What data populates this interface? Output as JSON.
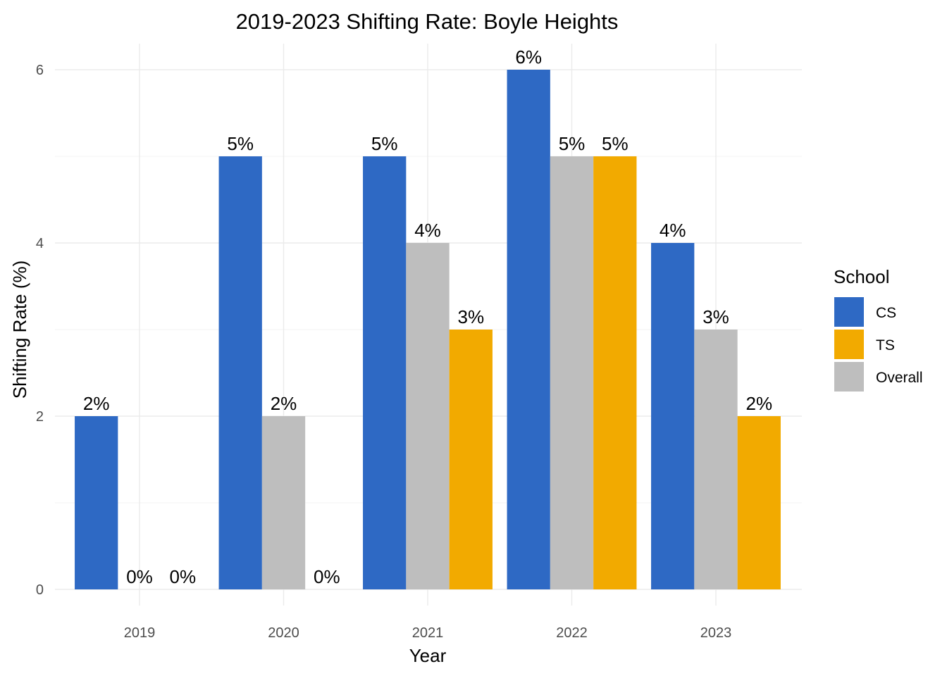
{
  "chart_data": {
    "type": "bar",
    "title": "2019-2023 Shifting Rate: Boyle Heights",
    "xlabel": "Year",
    "ylabel": "Shifting Rate (%)",
    "categories": [
      "2019",
      "2020",
      "2021",
      "2022",
      "2023"
    ],
    "series": [
      {
        "name": "CS",
        "color": "#2E69C4",
        "values": [
          2,
          5,
          5,
          6,
          4
        ],
        "labels": [
          "2%",
          "5%",
          "5%",
          "6%",
          "4%"
        ]
      },
      {
        "name": "Overall",
        "color": "#BEBEBE",
        "values": [
          0,
          2,
          4,
          5,
          3
        ],
        "labels": [
          "0%",
          "2%",
          "4%",
          "5%",
          "3%"
        ]
      },
      {
        "name": "TS",
        "color": "#F2AA00",
        "values": [
          0,
          0,
          3,
          5,
          2
        ],
        "labels": [
          "0%",
          "0%",
          "3%",
          "5%",
          "2%"
        ]
      }
    ],
    "ylim": [
      0,
      6
    ],
    "yticks": [
      0,
      2,
      4,
      6
    ],
    "grid": true,
    "legend": {
      "title": "School",
      "position": "right",
      "order": [
        "CS",
        "TS",
        "Overall"
      ]
    }
  }
}
